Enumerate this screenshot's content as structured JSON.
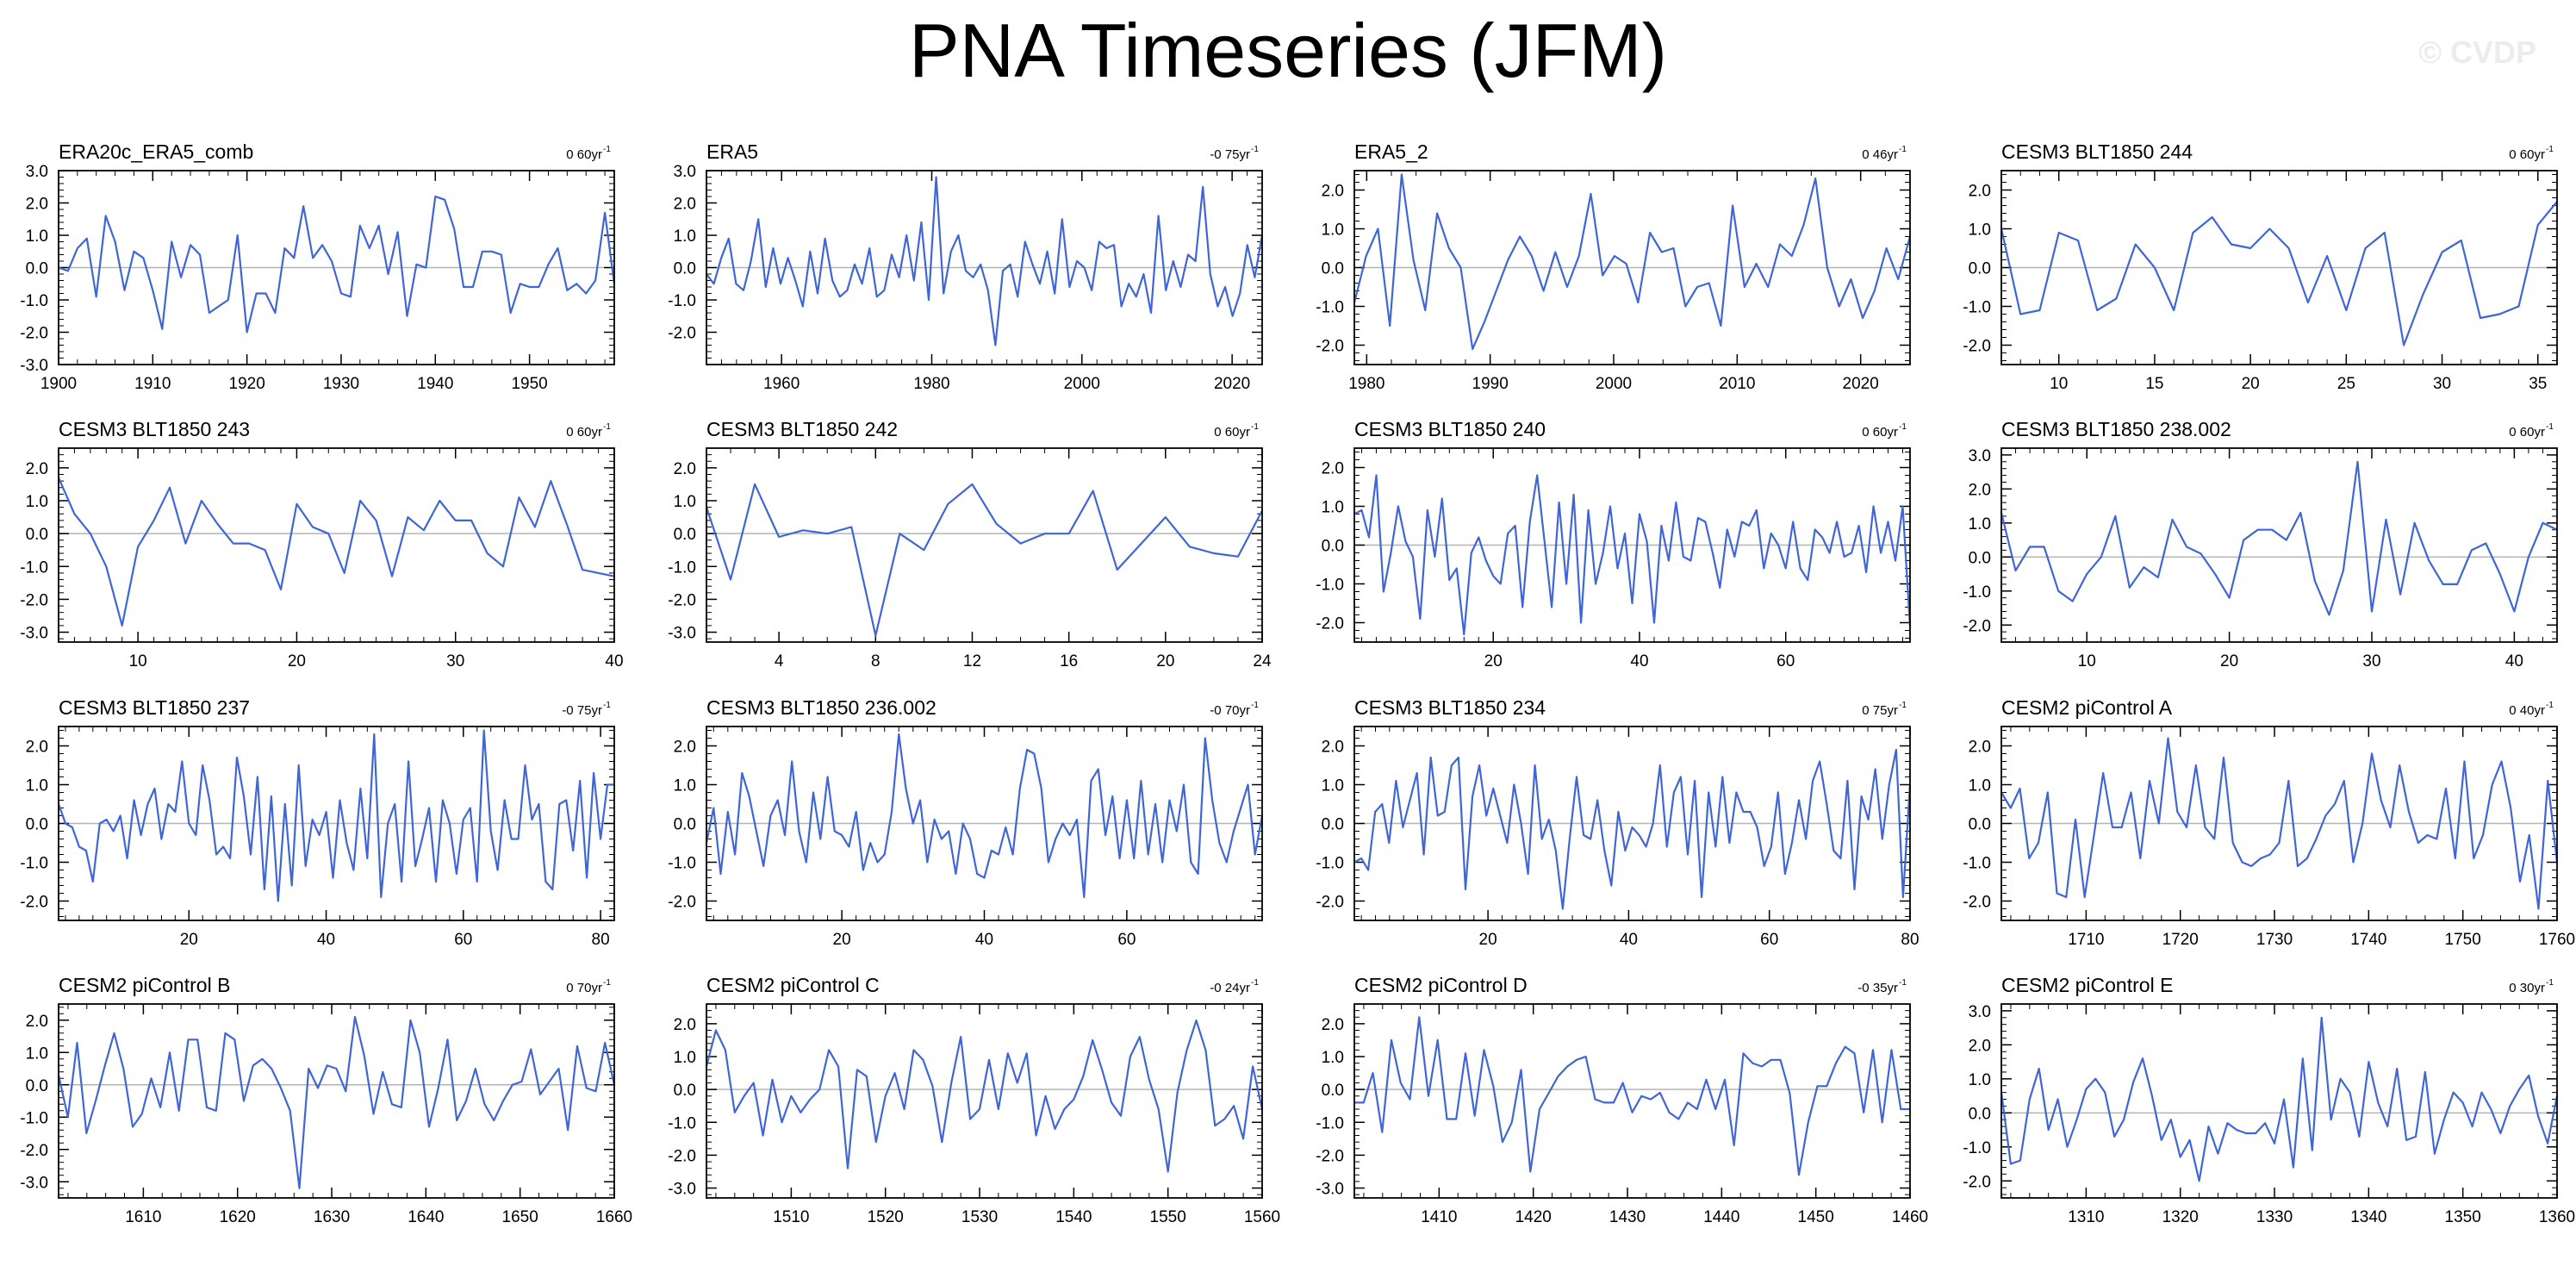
{
  "title": "PNA Timeseries (JFM)",
  "watermark": "© CVDP",
  "chart_data": [
    {
      "type": "line",
      "title": "ERA20c_ERA5_comb",
      "trend": "0 60yr",
      "trend_unit": "-1",
      "x_start": 1900,
      "x_end": 1959,
      "xticks": [
        1900,
        1910,
        1920,
        1930,
        1940,
        1950
      ],
      "ylim": [
        -3.0,
        3.0
      ],
      "yticks": [
        -3.0,
        -2.0,
        -1.0,
        0.0,
        1.0,
        2.0,
        3.0
      ],
      "values": [
        0.0,
        -0.1,
        0.6,
        0.9,
        -0.9,
        1.6,
        0.8,
        -0.7,
        0.5,
        0.3,
        -0.7,
        -1.9,
        0.8,
        -0.3,
        0.7,
        0.4,
        -1.4,
        -1.2,
        -1.0,
        1.0,
        -2.0,
        -0.8,
        -0.8,
        -1.4,
        0.6,
        0.3,
        1.9,
        0.3,
        0.7,
        0.2,
        -0.8,
        -0.9,
        1.3,
        0.6,
        1.3,
        -0.2,
        1.1,
        -1.5,
        0.1,
        0.0,
        2.2,
        2.1,
        1.2,
        -0.6,
        -0.6,
        0.5,
        0.5,
        0.4,
        -1.4,
        -0.5,
        -0.6,
        -0.6,
        0.1,
        0.6,
        -0.7,
        -0.5,
        -0.8,
        -0.4,
        1.7,
        -0.5
      ]
    },
    {
      "type": "line",
      "title": "ERA5",
      "trend": "-0 75yr",
      "trend_unit": "-1",
      "x_start": 1950,
      "x_end": 2024,
      "xticks": [
        1960,
        1980,
        2000,
        2020
      ],
      "ylim": [
        -3.0,
        3.0
      ],
      "yticks": [
        -2.0,
        -1.0,
        0.0,
        1.0,
        2.0,
        3.0
      ],
      "values": [
        -0.2,
        -0.5,
        0.3,
        0.9,
        -0.5,
        -0.7,
        0.2,
        1.5,
        -0.6,
        0.6,
        -0.5,
        0.3,
        -0.4,
        -1.2,
        0.5,
        -0.8,
        0.9,
        -0.4,
        -0.9,
        -0.7,
        0.1,
        -0.5,
        0.6,
        -0.9,
        -0.7,
        0.4,
        -0.3,
        1.0,
        -0.4,
        1.4,
        -1.0,
        2.8,
        -0.8,
        0.5,
        1.0,
        -0.1,
        -0.3,
        0.1,
        -0.7,
        -2.4,
        -0.1,
        0.1,
        -0.9,
        0.8,
        0.1,
        -0.5,
        0.5,
        -0.8,
        1.5,
        -0.6,
        0.2,
        0.0,
        -0.7,
        0.8,
        0.6,
        0.7,
        -1.2,
        -0.5,
        -0.9,
        -0.2,
        -1.4,
        1.6,
        -0.7,
        0.2,
        -0.6,
        0.4,
        0.2,
        2.5,
        -0.2,
        -1.2,
        -0.6,
        -1.5,
        -0.8,
        0.7,
        -0.3,
        1.0
      ]
    },
    {
      "type": "line",
      "title": "ERA5_2",
      "trend": "0 46yr",
      "trend_unit": "-1",
      "x_start": 1979,
      "x_end": 2024,
      "xticks": [
        1980,
        1990,
        2000,
        2010,
        2020
      ],
      "ylim": [
        -2.5,
        2.5
      ],
      "yticks": [
        -2.0,
        -1.0,
        0.0,
        1.0,
        2.0
      ],
      "values": [
        -0.9,
        0.3,
        1.0,
        -1.5,
        2.4,
        0.2,
        -1.1,
        1.4,
        0.5,
        0.0,
        -2.1,
        -1.4,
        -0.6,
        0.2,
        0.8,
        0.3,
        -0.6,
        0.4,
        -0.5,
        0.3,
        1.9,
        -0.2,
        0.3,
        0.1,
        -0.9,
        0.9,
        0.4,
        0.5,
        -1.0,
        -0.5,
        -0.4,
        -1.5,
        1.6,
        -0.5,
        0.1,
        -0.5,
        0.6,
        0.3,
        1.1,
        2.3,
        0.0,
        -1.0,
        -0.3,
        -1.3,
        -0.6,
        0.5,
        -0.3,
        0.8
      ]
    },
    {
      "type": "line",
      "title": "CESM3 BLT1850 244",
      "trend": "0 60yr",
      "trend_unit": "-1",
      "x_start": 7,
      "x_end": 36,
      "xticks": [
        10,
        15,
        20,
        25,
        30,
        35
      ],
      "ylim": [
        -2.5,
        2.5
      ],
      "yticks": [
        -2.0,
        -1.0,
        0.0,
        1.0,
        2.0
      ],
      "values": [
        1.0,
        -1.2,
        -1.1,
        0.9,
        0.7,
        -1.1,
        -0.8,
        0.6,
        0.0,
        -1.1,
        0.9,
        1.3,
        0.6,
        0.5,
        1.0,
        0.5,
        -0.9,
        0.3,
        -1.1,
        0.5,
        0.9,
        -2.0,
        -0.7,
        0.4,
        0.7,
        -1.3,
        -1.2,
        -1.0,
        1.1,
        1.7
      ]
    },
    {
      "type": "line",
      "title": "CESM3 BLT1850 243",
      "trend": "0 60yr",
      "trend_unit": "-1",
      "x_start": 5,
      "x_end": 40,
      "xticks": [
        10,
        20,
        30,
        40
      ],
      "ylim": [
        -3.3,
        2.6
      ],
      "yticks": [
        -3.0,
        -2.0,
        -1.0,
        0.0,
        1.0,
        2.0
      ],
      "values": [
        1.7,
        0.6,
        0.0,
        -1.0,
        -2.8,
        -0.4,
        0.4,
        1.4,
        -0.3,
        1.0,
        0.3,
        -0.3,
        -0.3,
        -0.5,
        -1.7,
        0.9,
        0.2,
        0.0,
        -1.2,
        1.0,
        0.4,
        -1.3,
        0.5,
        0.1,
        1.0,
        0.4,
        0.4,
        -0.6,
        -1.0,
        1.1,
        0.2,
        1.6,
        0.3,
        -1.1,
        -1.2,
        -1.3
      ]
    },
    {
      "type": "line",
      "title": "CESM3 BLT1850 242",
      "trend": "0 60yr",
      "trend_unit": "-1",
      "x_start": 1,
      "x_end": 24,
      "xticks": [
        4,
        8,
        12,
        16,
        20,
        24
      ],
      "ylim": [
        -3.3,
        2.6
      ],
      "yticks": [
        -3.0,
        -2.0,
        -1.0,
        0.0,
        1.0,
        2.0
      ],
      "values": [
        0.8,
        -1.4,
        1.5,
        -0.1,
        0.1,
        0.0,
        0.2,
        -3.1,
        0.0,
        -0.5,
        0.9,
        1.5,
        0.3,
        -0.3,
        0.0,
        0.0,
        1.3,
        -1.1,
        -0.3,
        0.5,
        -0.4,
        -0.6,
        -0.7,
        0.7
      ]
    },
    {
      "type": "line",
      "title": "CESM3 BLT1850 240",
      "trend": "0 60yr",
      "trend_unit": "-1",
      "x_start": 1,
      "x_end": 77,
      "xticks": [
        20,
        40,
        60
      ],
      "ylim": [
        -2.5,
        2.5
      ],
      "yticks": [
        -2.0,
        -1.0,
        0.0,
        1.0,
        2.0
      ],
      "values": [
        0.8,
        0.9,
        0.2,
        1.8,
        -1.2,
        -0.2,
        1.0,
        0.1,
        -0.3,
        -1.9,
        0.9,
        -0.3,
        1.2,
        -0.9,
        -0.6,
        -2.3,
        -0.2,
        0.2,
        -0.4,
        -0.8,
        -1.0,
        0.3,
        0.5,
        -1.6,
        0.6,
        1.8,
        0.1,
        -1.6,
        1.1,
        -1.0,
        1.3,
        -2.0,
        0.9,
        -1.0,
        -0.2,
        1.0,
        -0.6,
        0.3,
        -1.5,
        0.8,
        0.1,
        -2.0,
        0.5,
        -0.4,
        1.1,
        -0.3,
        -0.4,
        0.7,
        0.6,
        -0.2,
        -1.1,
        0.4,
        -0.3,
        0.6,
        0.5,
        0.9,
        -0.6,
        0.3,
        0.0,
        -0.6,
        0.6,
        -0.6,
        -0.9,
        0.4,
        0.2,
        -0.2,
        0.6,
        -0.3,
        -0.2,
        0.5,
        -0.7,
        1.0,
        -0.2,
        0.6,
        -0.4,
        1.0,
        -2.1
      ]
    },
    {
      "type": "line",
      "title": "CESM3 BLT1850 238.002",
      "trend": "0 60yr",
      "trend_unit": "-1",
      "x_start": 4,
      "x_end": 43,
      "xticks": [
        10,
        20,
        30,
        40
      ],
      "ylim": [
        -2.5,
        3.2
      ],
      "yticks": [
        -2.0,
        -1.0,
        0.0,
        1.0,
        2.0,
        3.0
      ],
      "values": [
        1.3,
        -0.4,
        0.3,
        0.3,
        -1.0,
        -1.3,
        -0.5,
        0.0,
        1.2,
        -0.9,
        -0.3,
        -0.6,
        1.1,
        0.3,
        0.1,
        -0.5,
        -1.2,
        0.5,
        0.8,
        0.8,
        0.5,
        1.3,
        -0.7,
        -1.7,
        -0.4,
        2.8,
        -1.6,
        1.1,
        -1.1,
        1.0,
        -0.1,
        -0.8,
        -0.8,
        0.2,
        0.4,
        -0.5,
        -1.6,
        0.0,
        1.0,
        0.8
      ]
    },
    {
      "type": "line",
      "title": "CESM3 BLT1850 237",
      "trend": "-0 75yr",
      "trend_unit": "-1",
      "x_start": 1,
      "x_end": 82,
      "xticks": [
        20,
        40,
        60,
        80
      ],
      "ylim": [
        -2.5,
        2.5
      ],
      "yticks": [
        -2.0,
        -1.0,
        0.0,
        1.0,
        2.0
      ],
      "values": [
        0.5,
        0.0,
        -0.1,
        -0.6,
        -0.7,
        -1.5,
        0.0,
        0.1,
        -0.2,
        0.2,
        -0.9,
        0.6,
        -0.3,
        0.5,
        0.9,
        -0.4,
        0.5,
        0.3,
        1.6,
        0.0,
        -0.3,
        1.5,
        0.6,
        -0.8,
        -0.6,
        -0.9,
        1.7,
        0.7,
        -0.8,
        1.2,
        -1.7,
        0.7,
        -2.0,
        0.5,
        -1.6,
        1.5,
        -1.1,
        0.1,
        -0.3,
        0.3,
        -1.4,
        0.6,
        -0.5,
        -1.2,
        0.9,
        -0.9,
        2.3,
        -1.9,
        0.0,
        0.5,
        -1.5,
        1.6,
        -1.1,
        -0.4,
        0.4,
        -1.5,
        0.6,
        0.0,
        -1.3,
        0.1,
        0.4,
        -1.5,
        2.4,
        -0.2,
        -1.2,
        0.6,
        -0.4,
        -0.4,
        1.5,
        0.1,
        0.5,
        -1.5,
        -1.7,
        0.5,
        0.6,
        -0.7,
        1.1,
        -1.4,
        1.3,
        -0.4,
        1.0,
        1.0
      ]
    },
    {
      "type": "line",
      "title": "CESM3 BLT1850 236.002",
      "trend": "-0 70yr",
      "trend_unit": "-1",
      "x_start": 1,
      "x_end": 79,
      "xticks": [
        20,
        40,
        60
      ],
      "ylim": [
        -2.5,
        2.5
      ],
      "yticks": [
        -2.0,
        -1.0,
        0.0,
        1.0,
        2.0
      ],
      "values": [
        -0.5,
        0.4,
        -1.3,
        0.3,
        -0.8,
        1.3,
        0.7,
        -0.2,
        -1.1,
        0.2,
        0.6,
        -0.3,
        1.6,
        -0.2,
        -1.0,
        0.8,
        -0.4,
        1.2,
        -0.2,
        -0.3,
        -0.6,
        0.3,
        -1.2,
        -0.5,
        -1.0,
        -0.8,
        0.3,
        2.3,
        0.9,
        0.0,
        0.6,
        -1.0,
        0.1,
        -0.4,
        -0.2,
        -1.3,
        0.0,
        -0.4,
        -1.3,
        -1.4,
        -0.7,
        -0.8,
        -0.1,
        -0.8,
        0.9,
        1.9,
        1.8,
        0.9,
        -1.0,
        -0.4,
        0.0,
        -0.3,
        0.1,
        -1.9,
        1.1,
        1.4,
        -0.3,
        0.7,
        -0.9,
        0.6,
        -0.9,
        1.1,
        -0.8,
        0.5,
        -1.0,
        0.6,
        -0.2,
        1.0,
        -1.0,
        -1.3,
        2.2,
        0.6,
        -0.5,
        -1.0,
        -0.2,
        0.4,
        1.0,
        -0.8,
        0.2
      ]
    },
    {
      "type": "line",
      "title": "CESM3 BLT1850 234",
      "trend": "0 75yr",
      "trend_unit": "-1",
      "x_start": 1,
      "x_end": 80,
      "xticks": [
        20,
        40,
        60,
        80
      ],
      "ylim": [
        -2.5,
        2.5
      ],
      "yticks": [
        -2.0,
        -1.0,
        0.0,
        1.0,
        2.0
      ],
      "values": [
        -1.0,
        -0.9,
        -1.2,
        0.3,
        0.5,
        -0.5,
        1.1,
        -0.1,
        0.6,
        1.3,
        -0.8,
        1.7,
        0.2,
        0.3,
        1.5,
        1.7,
        -1.7,
        0.7,
        1.5,
        0.2,
        0.9,
        0.2,
        -0.5,
        1.0,
        0.0,
        -1.3,
        1.5,
        -0.4,
        0.1,
        -0.7,
        -2.2,
        -0.4,
        1.2,
        -0.3,
        -0.4,
        0.6,
        -0.7,
        -1.6,
        0.3,
        -0.7,
        -0.1,
        -0.3,
        -0.6,
        0.0,
        1.5,
        -0.6,
        0.8,
        1.2,
        -0.8,
        1.1,
        -1.9,
        0.8,
        -0.6,
        1.2,
        -0.5,
        0.8,
        0.3,
        0.3,
        -0.1,
        -1.1,
        -0.6,
        0.8,
        -1.3,
        -0.5,
        0.6,
        -0.4,
        1.1,
        1.6,
        0.5,
        -0.7,
        -0.9,
        1.1,
        -1.7,
        0.7,
        0.1,
        1.4,
        -0.4,
        1.0,
        1.9,
        -1.9,
        1.0
      ]
    },
    {
      "type": "line",
      "title": "CESM2 piControl A",
      "trend": "0 40yr",
      "trend_unit": "-1",
      "x_start": 1701,
      "x_end": 1760,
      "xticks": [
        1710,
        1720,
        1730,
        1740,
        1750,
        1760
      ],
      "ylim": [
        -2.5,
        2.5
      ],
      "yticks": [
        -2.0,
        -1.0,
        0.0,
        1.0,
        2.0
      ],
      "values": [
        0.8,
        0.4,
        0.9,
        -0.9,
        -0.5,
        0.8,
        -1.8,
        -1.9,
        0.1,
        -1.9,
        -0.3,
        1.3,
        -0.1,
        -0.1,
        0.8,
        -0.9,
        1.1,
        0.0,
        2.2,
        0.3,
        -0.1,
        1.5,
        -0.1,
        -0.4,
        1.7,
        -0.5,
        -1.0,
        -1.1,
        -0.9,
        -0.8,
        -0.5,
        1.1,
        -1.1,
        -0.9,
        -0.4,
        0.2,
        0.5,
        1.1,
        -1.0,
        0.0,
        1.8,
        0.6,
        -0.1,
        1.5,
        0.3,
        -0.5,
        -0.3,
        -0.4,
        0.9,
        -0.9,
        1.6,
        -0.9,
        -0.3,
        1.0,
        1.6,
        0.4,
        -1.5,
        -0.3,
        -2.2,
        1.1,
        -1.0
      ]
    },
    {
      "type": "line",
      "title": "CESM2 piControl B",
      "trend": "0 70yr",
      "trend_unit": "-1",
      "x_start": 1601,
      "x_end": 1660,
      "xticks": [
        1610,
        1620,
        1630,
        1640,
        1650,
        1660
      ],
      "ylim": [
        -3.5,
        2.5
      ],
      "yticks": [
        -3.0,
        -2.0,
        -1.0,
        0.0,
        1.0,
        2.0
      ],
      "values": [
        0.3,
        -1.0,
        1.3,
        -1.5,
        -0.5,
        0.6,
        1.6,
        0.5,
        -1.3,
        -0.9,
        0.2,
        -0.7,
        1.0,
        -0.8,
        1.4,
        1.4,
        -0.7,
        -0.8,
        1.6,
        1.4,
        -0.5,
        0.6,
        0.8,
        0.5,
        -0.1,
        -0.8,
        -3.2,
        0.5,
        -0.1,
        0.6,
        0.5,
        -0.2,
        2.1,
        0.9,
        -0.9,
        0.4,
        -0.6,
        -0.7,
        2.0,
        1.0,
        -1.3,
        -0.1,
        1.4,
        -1.1,
        -0.5,
        0.5,
        -0.6,
        -1.1,
        -0.5,
        0.0,
        0.1,
        1.1,
        -0.3,
        0.1,
        0.5,
        -1.4,
        1.2,
        -0.1,
        -0.2,
        1.3,
        0.0
      ]
    },
    {
      "type": "line",
      "title": "CESM2 piControl C",
      "trend": "-0 24yr",
      "trend_unit": "-1",
      "x_start": 1501,
      "x_end": 1560,
      "xticks": [
        1510,
        1520,
        1530,
        1540,
        1550,
        1560
      ],
      "ylim": [
        -3.3,
        2.6
      ],
      "yticks": [
        -3.0,
        -2.0,
        -1.0,
        0.0,
        1.0,
        2.0
      ],
      "values": [
        0.7,
        1.8,
        1.2,
        -0.7,
        -0.2,
        0.2,
        -1.4,
        0.3,
        -1.0,
        -0.2,
        -0.7,
        -0.3,
        0.0,
        1.2,
        0.7,
        -2.4,
        0.6,
        0.4,
        -1.6,
        -0.2,
        0.5,
        -0.6,
        1.2,
        0.9,
        0.1,
        -1.6,
        0.2,
        1.6,
        -0.9,
        -0.6,
        0.9,
        -0.6,
        1.1,
        0.2,
        1.1,
        -1.4,
        -0.2,
        -1.2,
        -0.6,
        -0.3,
        0.4,
        1.5,
        0.6,
        -0.4,
        -0.8,
        1.0,
        1.6,
        0.3,
        -0.6,
        -2.5,
        -0.1,
        1.2,
        2.1,
        1.2,
        -1.1,
        -0.9,
        -0.5,
        -1.5,
        0.7,
        -0.6
      ]
    },
    {
      "type": "line",
      "title": "CESM2 piControl D",
      "trend": "-0 35yr",
      "trend_unit": "-1",
      "x_start": 1401,
      "x_end": 1460,
      "xticks": [
        1410,
        1420,
        1430,
        1440,
        1450,
        1460
      ],
      "ylim": [
        -3.3,
        2.6
      ],
      "yticks": [
        -3.0,
        -2.0,
        -1.0,
        0.0,
        1.0,
        2.0
      ],
      "values": [
        -0.4,
        -0.4,
        0.5,
        -1.3,
        1.5,
        0.2,
        -0.3,
        2.2,
        -0.2,
        1.5,
        -0.9,
        -0.9,
        1.1,
        -0.8,
        1.2,
        0.1,
        -1.6,
        -1.0,
        0.6,
        -2.5,
        -0.6,
        -0.1,
        0.4,
        0.7,
        0.9,
        1.0,
        -0.3,
        -0.4,
        -0.4,
        0.2,
        -0.7,
        -0.2,
        -0.3,
        -0.1,
        -0.7,
        -0.9,
        -0.4,
        -0.6,
        0.3,
        -0.6,
        0.3,
        -1.7,
        1.1,
        0.8,
        0.7,
        0.9,
        0.9,
        -0.1,
        -2.6,
        -1.0,
        0.1,
        0.1,
        0.8,
        1.3,
        1.1,
        -0.7,
        1.2,
        -1.0,
        1.2,
        -0.6,
        -0.6
      ]
    },
    {
      "type": "line",
      "title": "CESM2 piControl E",
      "trend": "0 30yr",
      "trend_unit": "-1",
      "x_start": 1301,
      "x_end": 1360,
      "xticks": [
        1310,
        1320,
        1330,
        1340,
        1350,
        1360
      ],
      "ylim": [
        -2.5,
        3.2
      ],
      "yticks": [
        -2.0,
        -1.0,
        0.0,
        1.0,
        2.0,
        3.0
      ],
      "values": [
        0.6,
        -1.5,
        -1.4,
        0.4,
        1.3,
        -0.5,
        0.4,
        -1.0,
        -0.2,
        0.7,
        1.0,
        0.6,
        -0.7,
        -0.2,
        0.9,
        1.6,
        0.5,
        -0.8,
        -0.2,
        -1.3,
        -0.8,
        -2.0,
        -0.4,
        -1.2,
        -0.3,
        -0.5,
        -0.6,
        -0.6,
        -0.3,
        -0.9,
        0.4,
        -1.6,
        1.6,
        -1.1,
        2.8,
        -0.2,
        1.0,
        0.6,
        -0.7,
        1.5,
        0.3,
        -0.4,
        1.3,
        -0.8,
        -0.7,
        1.2,
        -1.2,
        -0.2,
        0.6,
        0.3,
        -0.4,
        0.6,
        0.1,
        -0.6,
        0.2,
        0.7,
        1.1,
        -0.1,
        -0.9,
        0.5
      ]
    }
  ]
}
